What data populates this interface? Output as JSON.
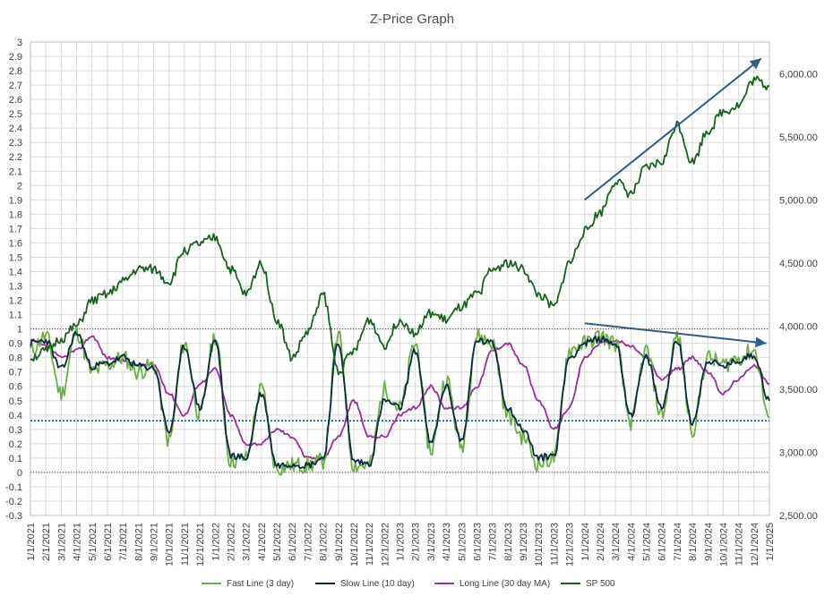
{
  "chart_data": {
    "type": "line",
    "title": "Z-Price Graph",
    "x_dates": [
      "1/1/2021",
      "2/1/2021",
      "3/1/2021",
      "4/1/2021",
      "5/1/2021",
      "6/1/2021",
      "7/1/2021",
      "8/1/2021",
      "9/1/2021",
      "10/1/2021",
      "11/1/2021",
      "12/1/2021",
      "1/1/2022",
      "2/1/2022",
      "3/1/2022",
      "4/1/2022",
      "5/1/2022",
      "6/1/2022",
      "7/1/2022",
      "8/1/2022",
      "9/1/2022",
      "10/1/2022",
      "11/1/2022",
      "12/1/2022",
      "1/1/2023",
      "2/1/2023",
      "3/1/2023",
      "4/1/2023",
      "5/1/2023",
      "6/1/2023",
      "7/1/2023",
      "8/1/2023",
      "9/1/2023",
      "10/1/2023",
      "11/1/2023",
      "12/1/2023",
      "1/1/2024",
      "2/1/2024",
      "3/1/2024",
      "4/1/2024",
      "5/1/2024",
      "6/1/2024",
      "7/1/2024",
      "8/1/2024",
      "9/1/2024",
      "10/1/2024",
      "11/1/2024",
      "12/1/2024",
      "1/1/2025"
    ],
    "y_left": {
      "min": -0.3,
      "max": 3,
      "ticks": [
        "3",
        "2.9",
        "2.8",
        "2.7",
        "2.6",
        "2.5",
        "2.4",
        "2.3",
        "2.2",
        "2.1",
        "2",
        "1.9",
        "1.8",
        "1.7",
        "1.6",
        "1.5",
        "1.4",
        "1.3",
        "1.2",
        "1.1",
        "1",
        "0.9",
        "0.8",
        "0.7",
        "0.6",
        "0.5",
        "0.4",
        "0.3",
        "0.2",
        "0.1",
        "0",
        "-0.1",
        "-0.2",
        "-0.3"
      ]
    },
    "y_right": {
      "min": 2500,
      "max": 6250,
      "ticks": [
        "6,000.00",
        "5,500.00",
        "5,000.00",
        "4,500.00",
        "4,000.00",
        "3,500.00",
        "3,000.00",
        "2,500.00"
      ]
    },
    "reference_lines": [
      {
        "axis": "left",
        "value": 1,
        "style": "dotted",
        "color": "#404040"
      },
      {
        "axis": "left",
        "value": 0,
        "style": "dotted",
        "color": "#404040"
      },
      {
        "axis": "left",
        "value": 0.36,
        "style": "dotted",
        "color": "#1f5f8b"
      }
    ],
    "annotations": [
      {
        "type": "arrow",
        "from": {
          "x": "1/1/2024",
          "sp": 5000
        },
        "to": {
          "x": "12/15/2024",
          "sp": 6120
        },
        "color": "#2f6080"
      },
      {
        "type": "arrow",
        "from": {
          "x": "1/1/2024",
          "z": 1.04
        },
        "to": {
          "x": "12/25/2024",
          "z": 0.9
        },
        "color": "#2f6080"
      }
    ],
    "legend": {
      "position": "bottom"
    },
    "colors": {
      "fast": "#6aae45",
      "slow": "#0b2a40",
      "long": "#9b2d9b",
      "sp": "#1a6020",
      "grid": "#d9d9d9"
    },
    "series": [
      {
        "key": "fast",
        "name": "Fast Line (3 day)",
        "axis": "left",
        "values": [
          0.85,
          0.95,
          0.55,
          0.98,
          0.7,
          0.75,
          0.8,
          0.7,
          0.75,
          0.22,
          0.9,
          0.4,
          0.95,
          0.08,
          0.1,
          0.58,
          0.03,
          0.05,
          0.05,
          0.08,
          0.95,
          0.05,
          0.05,
          0.58,
          0.45,
          0.9,
          0.15,
          0.65,
          0.18,
          0.95,
          0.9,
          0.4,
          0.25,
          0.06,
          0.1,
          0.85,
          0.9,
          0.95,
          0.9,
          0.35,
          0.85,
          0.4,
          0.95,
          0.3,
          0.8,
          0.75,
          0.8,
          0.85,
          0.38
        ]
      },
      {
        "key": "slow",
        "name": "Slow Line (10 day)",
        "axis": "left",
        "values": [
          0.9,
          0.92,
          0.72,
          0.97,
          0.74,
          0.76,
          0.8,
          0.74,
          0.73,
          0.28,
          0.88,
          0.45,
          0.92,
          0.12,
          0.1,
          0.55,
          0.05,
          0.06,
          0.05,
          0.1,
          0.9,
          0.08,
          0.06,
          0.5,
          0.45,
          0.85,
          0.2,
          0.6,
          0.22,
          0.92,
          0.9,
          0.45,
          0.3,
          0.1,
          0.12,
          0.8,
          0.9,
          0.93,
          0.9,
          0.4,
          0.8,
          0.45,
          0.92,
          0.35,
          0.78,
          0.74,
          0.78,
          0.82,
          0.5
        ]
      },
      {
        "key": "long",
        "name": "Long Line (30 day MA)",
        "axis": "left",
        "values": [
          0.92,
          0.88,
          0.8,
          0.85,
          0.95,
          0.8,
          0.78,
          0.75,
          0.75,
          0.55,
          0.4,
          0.62,
          0.72,
          0.4,
          0.2,
          0.2,
          0.3,
          0.25,
          0.1,
          0.1,
          0.25,
          0.5,
          0.25,
          0.25,
          0.4,
          0.45,
          0.6,
          0.45,
          0.45,
          0.6,
          0.85,
          0.9,
          0.75,
          0.5,
          0.3,
          0.45,
          0.8,
          0.9,
          0.92,
          0.88,
          0.8,
          0.65,
          0.72,
          0.8,
          0.7,
          0.55,
          0.65,
          0.75,
          0.62
        ]
      },
      {
        "key": "sp",
        "name": "SP 500",
        "axis": "right",
        "values": [
          3750,
          3800,
          3900,
          4000,
          4200,
          4250,
          4350,
          4450,
          4450,
          4350,
          4600,
          4650,
          4700,
          4450,
          4250,
          4500,
          4050,
          3750,
          3950,
          4250,
          3650,
          3800,
          4050,
          3850,
          4050,
          3950,
          4100,
          4050,
          4150,
          4250,
          4450,
          4500,
          4450,
          4250,
          4150,
          4500,
          4750,
          4900,
          5150,
          5050,
          5250,
          5300,
          5600,
          5300,
          5550,
          5700,
          5750,
          5950,
          5900
        ]
      }
    ]
  }
}
